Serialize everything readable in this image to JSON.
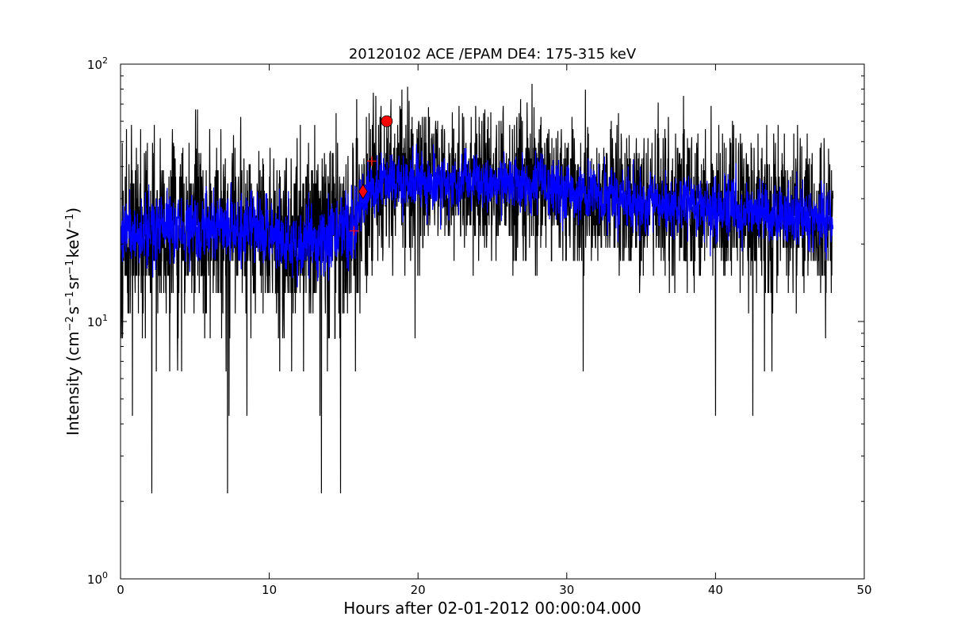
{
  "chart_data": {
    "type": "line",
    "title": "20120102 ACE /EPAM DE4: 175-315 keV",
    "xlabel": "Hours after 02-01-2012 00:00:04.000",
    "ylabel": {
      "prefix": "Intensity (cm",
      "exp1": "−2",
      "mid1": "s",
      "exp2": "−1",
      "mid2": "sr",
      "exp3": "−1",
      "mid3": "keV",
      "exp4": "−1",
      "suffix": ")"
    },
    "x_ticks": [
      0,
      10,
      20,
      30,
      40,
      50
    ],
    "x_tick_labels": [
      "0",
      "10",
      "20",
      "30",
      "40",
      "50"
    ],
    "xlim": [
      0,
      50
    ],
    "y_scale": "log",
    "ylim": [
      1,
      100
    ],
    "y_ticks": [
      {
        "value": 1,
        "base": "10",
        "exp": "0"
      },
      {
        "value": 10,
        "base": "10",
        "exp": "1"
      },
      {
        "value": 100,
        "base": "10",
        "exp": "2"
      }
    ],
    "grid": false,
    "legend": "none",
    "series": [
      {
        "role": "raw",
        "color": "#000000",
        "x_range": [
          0,
          47.9
        ],
        "points_count": 2870,
        "envelope": [
          {
            "x": 0,
            "median": 22,
            "spread": 0.34
          },
          {
            "x": 5,
            "median": 23,
            "spread": 0.34
          },
          {
            "x": 10,
            "median": 22,
            "spread": 0.34
          },
          {
            "x": 12,
            "median": 20,
            "spread": 0.36
          },
          {
            "x": 15.5,
            "median": 23,
            "spread": 0.34
          },
          {
            "x": 16.3,
            "median": 30,
            "spread": 0.3
          },
          {
            "x": 18,
            "median": 36,
            "spread": 0.28
          },
          {
            "x": 22,
            "median": 34,
            "spread": 0.28
          },
          {
            "x": 26,
            "median": 35,
            "spread": 0.28
          },
          {
            "x": 30,
            "median": 32,
            "spread": 0.28
          },
          {
            "x": 35,
            "median": 29,
            "spread": 0.3
          },
          {
            "x": 40,
            "median": 27,
            "spread": 0.3
          },
          {
            "x": 47.9,
            "median": 25,
            "spread": 0.3
          }
        ],
        "spikes": [
          {
            "x": 0.8,
            "y": 4.3
          },
          {
            "x": 2.1,
            "y": 2.15
          },
          {
            "x": 2.4,
            "y": 6.4
          },
          {
            "x": 3.3,
            "y": 6.4
          },
          {
            "x": 4.1,
            "y": 6.4
          },
          {
            "x": 6.8,
            "y": 8.6
          },
          {
            "x": 7.1,
            "y": 6.4
          },
          {
            "x": 7.2,
            "y": 2.15
          },
          {
            "x": 7.3,
            "y": 4.3
          },
          {
            "x": 8.5,
            "y": 4.3
          },
          {
            "x": 9.3,
            "y": 4.3
          },
          {
            "x": 10.7,
            "y": 6.4
          },
          {
            "x": 11.5,
            "y": 6.4
          },
          {
            "x": 12.3,
            "y": 6.4
          },
          {
            "x": 13.4,
            "y": 4.3
          },
          {
            "x": 13.5,
            "y": 2.15
          },
          {
            "x": 13.9,
            "y": 6.4
          },
          {
            "x": 14.8,
            "y": 2.15
          },
          {
            "x": 15.8,
            "y": 6.4
          },
          {
            "x": 19.8,
            "y": 8.6
          },
          {
            "x": 31.1,
            "y": 6.4
          },
          {
            "x": 40.0,
            "y": 4.3
          },
          {
            "x": 42.5,
            "y": 4.3
          },
          {
            "x": 43.3,
            "y": 6.4
          },
          {
            "x": 43.8,
            "y": 6.4
          },
          {
            "x": 47.4,
            "y": 8.6
          }
        ],
        "peaks": [
          {
            "x": 1.7,
            "y": 46
          },
          {
            "x": 3.6,
            "y": 48
          },
          {
            "x": 5.1,
            "y": 47
          },
          {
            "x": 6.0,
            "y": 56
          },
          {
            "x": 7.6,
            "y": 53
          },
          {
            "x": 9.3,
            "y": 46
          },
          {
            "x": 11.8,
            "y": 40
          },
          {
            "x": 14.1,
            "y": 46
          },
          {
            "x": 15.3,
            "y": 44
          },
          {
            "x": 16.6,
            "y": 45
          },
          {
            "x": 17.9,
            "y": 62
          },
          {
            "x": 19.4,
            "y": 72
          },
          {
            "x": 20.7,
            "y": 68
          },
          {
            "x": 22.3,
            "y": 65
          },
          {
            "x": 24.9,
            "y": 65
          },
          {
            "x": 27.8,
            "y": 68
          },
          {
            "x": 29.4,
            "y": 55
          },
          {
            "x": 31.4,
            "y": 57
          },
          {
            "x": 34.2,
            "y": 53
          },
          {
            "x": 36.6,
            "y": 56
          },
          {
            "x": 38.4,
            "y": 52
          },
          {
            "x": 41.7,
            "y": 49
          },
          {
            "x": 45.8,
            "y": 48
          },
          {
            "x": 47.6,
            "y": 47
          }
        ]
      },
      {
        "role": "smoothed",
        "color": "#0000ff",
        "x_range": [
          0,
          47.9
        ],
        "envelope": [
          {
            "x": 0,
            "median": 22,
            "spread": 0.14
          },
          {
            "x": 5,
            "median": 23,
            "spread": 0.14
          },
          {
            "x": 10,
            "median": 22,
            "spread": 0.14
          },
          {
            "x": 12,
            "median": 20,
            "spread": 0.15
          },
          {
            "x": 15.5,
            "median": 23,
            "spread": 0.14
          },
          {
            "x": 16.3,
            "median": 30,
            "spread": 0.12
          },
          {
            "x": 18,
            "median": 36,
            "spread": 0.11
          },
          {
            "x": 22,
            "median": 34,
            "spread": 0.11
          },
          {
            "x": 26,
            "median": 35,
            "spread": 0.11
          },
          {
            "x": 30,
            "median": 32,
            "spread": 0.11
          },
          {
            "x": 35,
            "median": 29,
            "spread": 0.12
          },
          {
            "x": 40,
            "median": 27,
            "spread": 0.12
          },
          {
            "x": 47.9,
            "median": 25,
            "spread": 0.12
          }
        ]
      }
    ],
    "markers": [
      {
        "name": "pre-event-level",
        "shape": "plus",
        "color": "#ff0000",
        "x": 15.7,
        "y": 22.5
      },
      {
        "name": "onset",
        "shape": "diamond",
        "color": "#ff0000",
        "x": 16.3,
        "y": 32
      },
      {
        "name": "rise-level",
        "shape": "plus",
        "color": "#ff0000",
        "x": 16.9,
        "y": 42
      },
      {
        "name": "peak",
        "shape": "circle",
        "color": "#ff0000",
        "x": 17.9,
        "y": 60
      }
    ]
  }
}
